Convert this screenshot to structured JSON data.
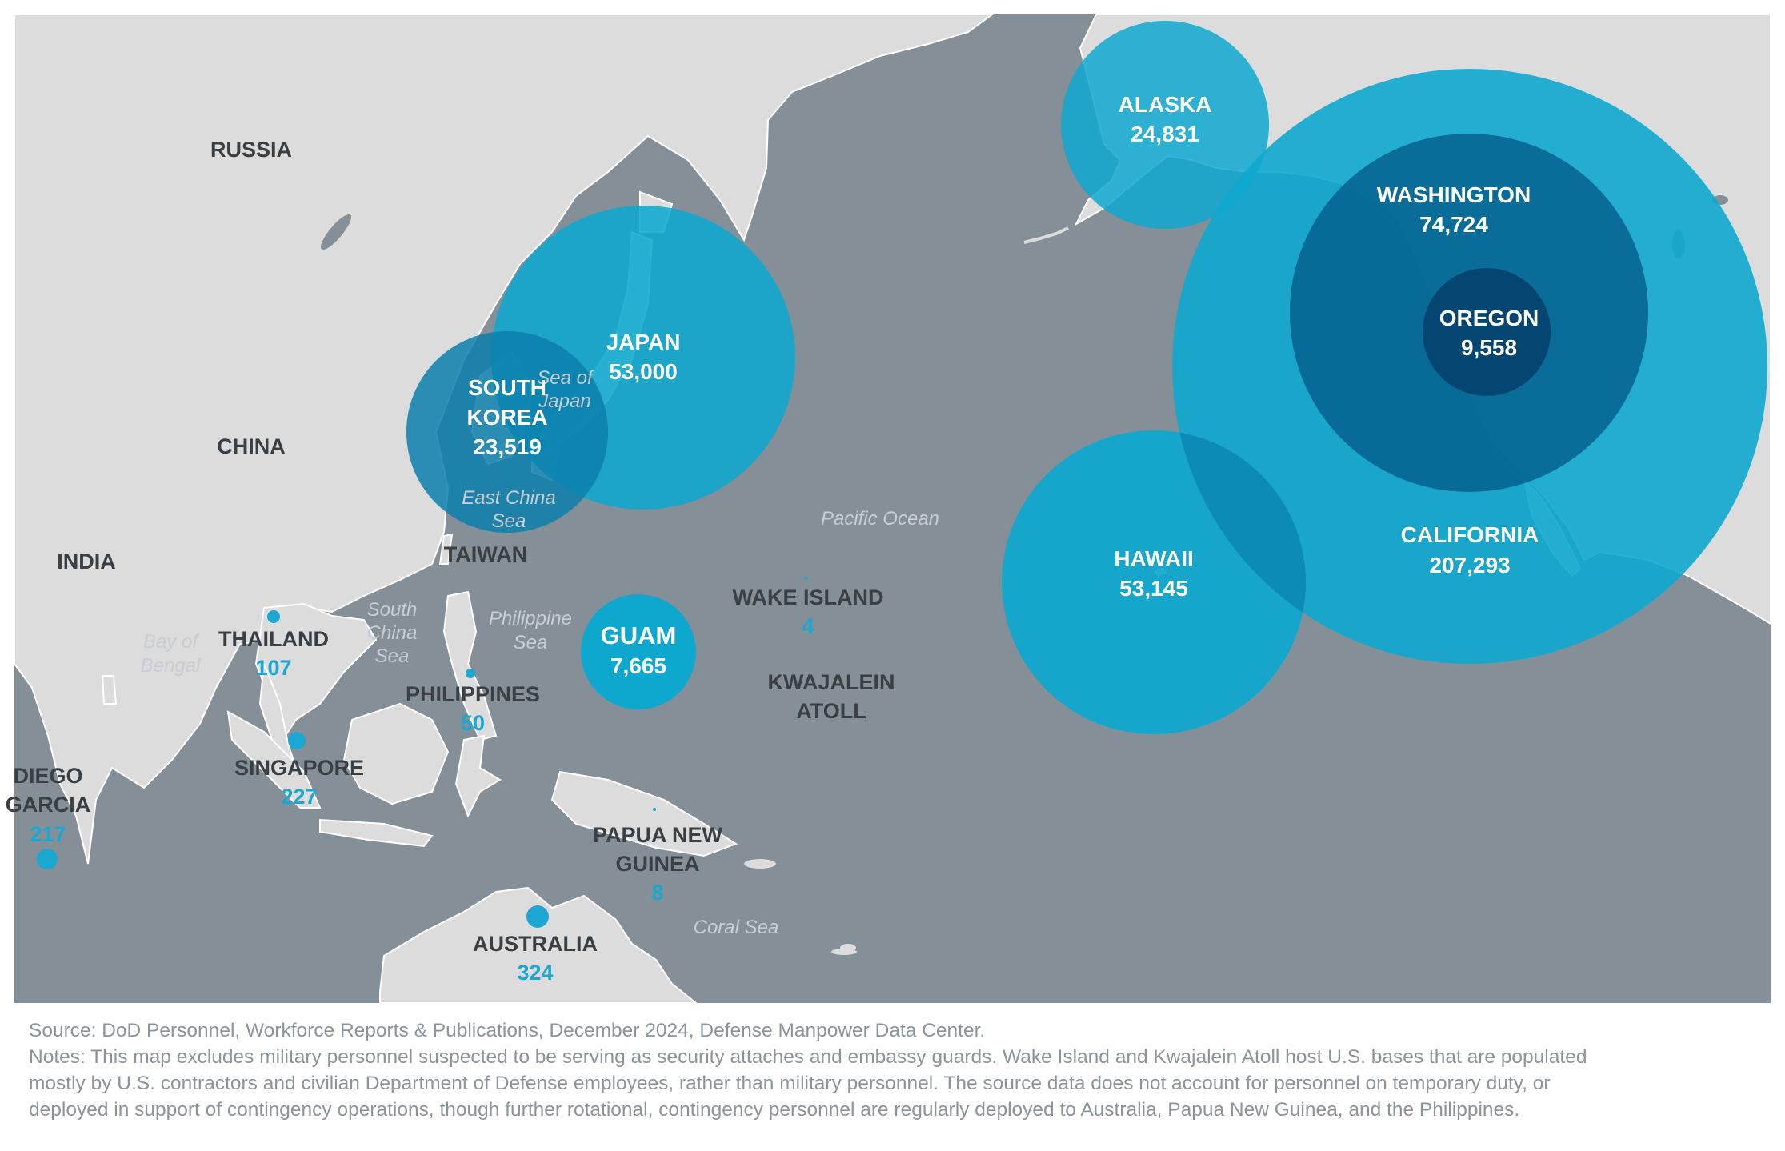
{
  "colors": {
    "ocean": "#848f98",
    "land": "#dcdcdc",
    "land_edge": "#ffffff",
    "bubble_light": "#0ea8cf",
    "bubble_mid": "#0c7fab",
    "bubble_dark": "#06608e",
    "bubble_darkest": "#04456f",
    "label_dark": "#3a3f44",
    "value_blue": "#1aa7d2",
    "water_label": "#c7cdd2",
    "source_text": "#8b949a"
  },
  "countries": {
    "russia": "RUSSIA",
    "china": "CHINA",
    "india": "INDIA"
  },
  "water_bodies": {
    "pacific_ocean": "Pacific Ocean",
    "bay_of_bengal_1": "Bay of",
    "bay_of_bengal_2": "Bengal",
    "south_china_sea_1": "South",
    "south_china_sea_2": "China",
    "south_china_sea_3": "Sea",
    "philippine_sea_1": "Philippine",
    "philippine_sea_2": "Sea",
    "east_china_sea_1": "East China",
    "east_china_sea_2": "Sea",
    "sea_of_japan_1": "Sea of",
    "sea_of_japan_2": "Japan",
    "coral_sea": "Coral Sea"
  },
  "bubble_locations": [
    {
      "name": "ALASKA",
      "value": "24,831",
      "personnel": 24831
    },
    {
      "name": "WASHINGTON",
      "value": "74,724",
      "personnel": 74724
    },
    {
      "name": "OREGON",
      "value": "9,558",
      "personnel": 9558
    },
    {
      "name": "CALIFORNIA",
      "value": "207,293",
      "personnel": 207293
    },
    {
      "name": "HAWAII",
      "value": "53,145",
      "personnel": 53145
    },
    {
      "name": "JAPAN",
      "value": "53,000",
      "personnel": 53000
    },
    {
      "name_line1": "SOUTH",
      "name_line2": "KOREA",
      "value": "23,519",
      "personnel": 23519
    },
    {
      "name": "GUAM",
      "value": "7,665",
      "personnel": 7665
    }
  ],
  "small_locations": [
    {
      "name": "TAIWAN",
      "value": ""
    },
    {
      "name": "WAKE ISLAND",
      "value": "4",
      "personnel": 4
    },
    {
      "name_line1": "KWAJALEIN",
      "name_line2": "ATOLL",
      "value": ""
    },
    {
      "name": "THAILAND",
      "value": "107",
      "personnel": 107
    },
    {
      "name": "PHILIPPINES",
      "value": "50",
      "personnel": 50
    },
    {
      "name": "SINGAPORE",
      "value": "227",
      "personnel": 227
    },
    {
      "name_line1": "DIEGO",
      "name_line2": "GARCIA",
      "value": "217",
      "personnel": 217
    },
    {
      "name_line1": "PAPUA NEW",
      "name_line2": "GUINEA",
      "value": "8",
      "personnel": 8
    },
    {
      "name": "AUSTRALIA",
      "value": "324",
      "personnel": 324
    }
  ],
  "footnote": {
    "source": "Source:  DoD Personnel, Workforce Reports & Publications, December 2024, Defense Manpower Data Center.",
    "notes_line1": "Notes: This map excludes military personnel suspected to be serving as security attaches and embassy guards. Wake Island and Kwajalein Atoll host U.S. bases that are populated",
    "notes_line2": "mostly by U.S. contractors and civilian Department of Defense employees, rather than military personnel. The source data does not account for personnel on temporary duty, or",
    "notes_line3": "deployed in support of contingency operations, though further rotational, contingency personnel are regularly deployed to Australia, Papua New Guinea, and the Philippines."
  }
}
